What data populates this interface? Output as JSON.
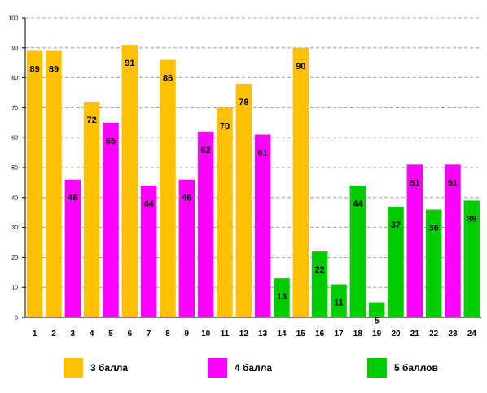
{
  "chart_data": {
    "type": "bar",
    "categories": [
      "1",
      "2",
      "3",
      "4",
      "5",
      "6",
      "7",
      "8",
      "9",
      "10",
      "11",
      "12",
      "13",
      "14",
      "15",
      "16",
      "17",
      "18",
      "19",
      "20",
      "21",
      "22",
      "23",
      "24"
    ],
    "values": [
      89,
      89,
      46,
      72,
      65,
      91,
      44,
      86,
      46,
      62,
      70,
      78,
      61,
      13,
      90,
      22,
      11,
      44,
      5,
      37,
      51,
      36,
      51,
      39
    ],
    "groups": [
      "3 балла",
      "3 балла",
      "4 балла",
      "3 балла",
      "4 балла",
      "3 балла",
      "4 балла",
      "3 балла",
      "4 балла",
      "4 балла",
      "3 балла",
      "3 балла",
      "4 балла",
      "5 баллов",
      "3 балла",
      "5 баллов",
      "5 баллов",
      "5 баллов",
      "5 баллов",
      "5 баллов",
      "4 балла",
      "5 баллов",
      "4 балла",
      "5 баллов"
    ],
    "legend": [
      {
        "name": "3 балла",
        "color": "#ffc000"
      },
      {
        "name": "4 балла",
        "color": "#ff00ff"
      },
      {
        "name": "5 баллов",
        "color": "#00cc00"
      }
    ],
    "ylim": [
      0,
      100
    ],
    "yticks": [
      0,
      10,
      20,
      30,
      40,
      50,
      60,
      70,
      80,
      90,
      100
    ],
    "grid": true,
    "legend_placement": "bottom",
    "data_labels": true
  }
}
